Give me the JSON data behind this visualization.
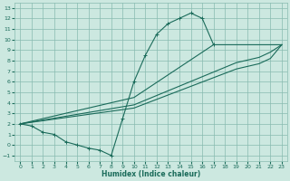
{
  "xlabel": "Humidex (Indice chaleur)",
  "bg_color": "#cce8e0",
  "grid_color": "#88bbb0",
  "line_color": "#1a6b5a",
  "xlim": [
    -0.5,
    23.5
  ],
  "ylim": [
    -1.5,
    13.5
  ],
  "xticks": [
    0,
    1,
    2,
    3,
    4,
    5,
    6,
    7,
    8,
    9,
    10,
    11,
    12,
    13,
    14,
    15,
    16,
    17,
    18,
    19,
    20,
    21,
    22,
    23
  ],
  "yticks": [
    -1,
    0,
    1,
    2,
    3,
    4,
    5,
    6,
    7,
    8,
    9,
    10,
    11,
    12,
    13
  ],
  "line1_x": [
    0,
    1,
    2,
    3,
    4,
    5,
    6,
    7,
    8,
    9,
    10,
    11,
    12,
    13,
    14,
    15,
    16,
    17
  ],
  "line1_y": [
    2.0,
    1.8,
    1.2,
    1.0,
    0.3,
    0.0,
    -0.3,
    -0.5,
    -1.0,
    2.5,
    6.0,
    8.5,
    10.5,
    11.5,
    12.0,
    12.5,
    12.0,
    9.5
  ],
  "line2_x": [
    0,
    10,
    17,
    23
  ],
  "line2_y": [
    2.0,
    4.5,
    9.5,
    9.5
  ],
  "line3_x": [
    0,
    10,
    19,
    21,
    22,
    23
  ],
  "line3_y": [
    2.0,
    3.8,
    7.8,
    8.3,
    8.8,
    9.5
  ],
  "line4_x": [
    0,
    10,
    19,
    21,
    22,
    23
  ],
  "line4_y": [
    2.0,
    3.5,
    7.2,
    7.7,
    8.2,
    9.5
  ]
}
